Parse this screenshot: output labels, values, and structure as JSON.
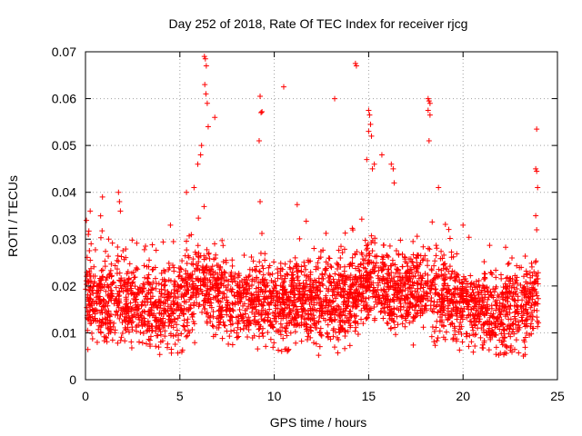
{
  "chart_data": {
    "type": "scatter",
    "title": "Day 252 of 2018, Rate Of TEC Index for receiver rjcg",
    "xlabel": "GPS time / hours",
    "ylabel": "ROTI / TECUs",
    "xlim": [
      0,
      25
    ],
    "ylim": [
      0,
      0.07
    ],
    "x_ticks": [
      0,
      5,
      10,
      15,
      20,
      25
    ],
    "y_ticks": [
      0,
      0.01,
      0.02,
      0.03,
      0.04,
      0.05,
      0.06,
      0.07
    ],
    "x_tick_labels": [
      "0",
      "5",
      "10",
      "15",
      "20",
      "25"
    ],
    "y_tick_labels": [
      "0",
      "0.01",
      "0.02",
      "0.03",
      "0.04",
      "0.05",
      "0.06",
      "0.07"
    ],
    "grid": true,
    "marker": "+",
    "series": [
      {
        "name": "ROTI",
        "color": "#ff0000",
        "baseline_profile": [
          [
            0,
            0.018
          ],
          [
            1,
            0.016
          ],
          [
            2,
            0.017
          ],
          [
            3,
            0.016
          ],
          [
            4,
            0.015
          ],
          [
            5,
            0.016
          ],
          [
            6,
            0.021
          ],
          [
            7,
            0.018
          ],
          [
            8,
            0.016
          ],
          [
            9,
            0.016
          ],
          [
            10,
            0.016
          ],
          [
            11,
            0.017
          ],
          [
            12,
            0.016
          ],
          [
            13,
            0.017
          ],
          [
            14,
            0.018
          ],
          [
            15,
            0.02
          ],
          [
            16,
            0.019
          ],
          [
            17,
            0.019
          ],
          [
            18,
            0.019
          ],
          [
            19,
            0.018
          ],
          [
            20,
            0.016
          ],
          [
            21,
            0.015
          ],
          [
            22,
            0.014
          ],
          [
            23,
            0.015
          ],
          [
            24,
            0.017
          ]
        ],
        "spikes": [
          [
            0.05,
            0.034
          ],
          [
            0.15,
            0.031
          ],
          [
            0.25,
            0.036
          ],
          [
            0.9,
            0.039
          ],
          [
            1.75,
            0.04
          ],
          [
            1.8,
            0.038
          ],
          [
            1.85,
            0.036
          ],
          [
            4.5,
            0.033
          ],
          [
            5.35,
            0.04
          ],
          [
            5.75,
            0.041
          ],
          [
            5.95,
            0.046
          ],
          [
            6.1,
            0.048
          ],
          [
            6.15,
            0.05
          ],
          [
            6.3,
            0.069
          ],
          [
            6.35,
            0.0685
          ],
          [
            6.4,
            0.067
          ],
          [
            6.32,
            0.063
          ],
          [
            6.38,
            0.061
          ],
          [
            6.45,
            0.059
          ],
          [
            6.5,
            0.054
          ],
          [
            6.85,
            0.056
          ],
          [
            9.25,
            0.0605
          ],
          [
            9.3,
            0.057
          ],
          [
            9.35,
            0.0572
          ],
          [
            9.2,
            0.051
          ],
          [
            9.25,
            0.038
          ],
          [
            10.5,
            0.0625
          ],
          [
            13.2,
            0.06
          ],
          [
            14.3,
            0.0675
          ],
          [
            14.35,
            0.067
          ],
          [
            15.0,
            0.0575
          ],
          [
            15.05,
            0.0565
          ],
          [
            15.1,
            0.0545
          ],
          [
            15.0,
            0.053
          ],
          [
            15.15,
            0.052
          ],
          [
            14.9,
            0.047
          ],
          [
            15.2,
            0.045
          ],
          [
            15.3,
            0.046
          ],
          [
            15.7,
            0.048
          ],
          [
            16.2,
            0.046
          ],
          [
            16.3,
            0.045
          ],
          [
            16.35,
            0.042
          ],
          [
            18.15,
            0.06
          ],
          [
            18.2,
            0.0595
          ],
          [
            18.25,
            0.059
          ],
          [
            18.15,
            0.0575
          ],
          [
            18.25,
            0.0565
          ],
          [
            18.2,
            0.051
          ],
          [
            18.7,
            0.041
          ],
          [
            20.0,
            0.033
          ],
          [
            23.9,
            0.0535
          ],
          [
            23.85,
            0.045
          ],
          [
            23.9,
            0.0445
          ],
          [
            23.95,
            0.041
          ],
          [
            23.85,
            0.035
          ],
          [
            23.9,
            0.032
          ]
        ]
      }
    ]
  }
}
